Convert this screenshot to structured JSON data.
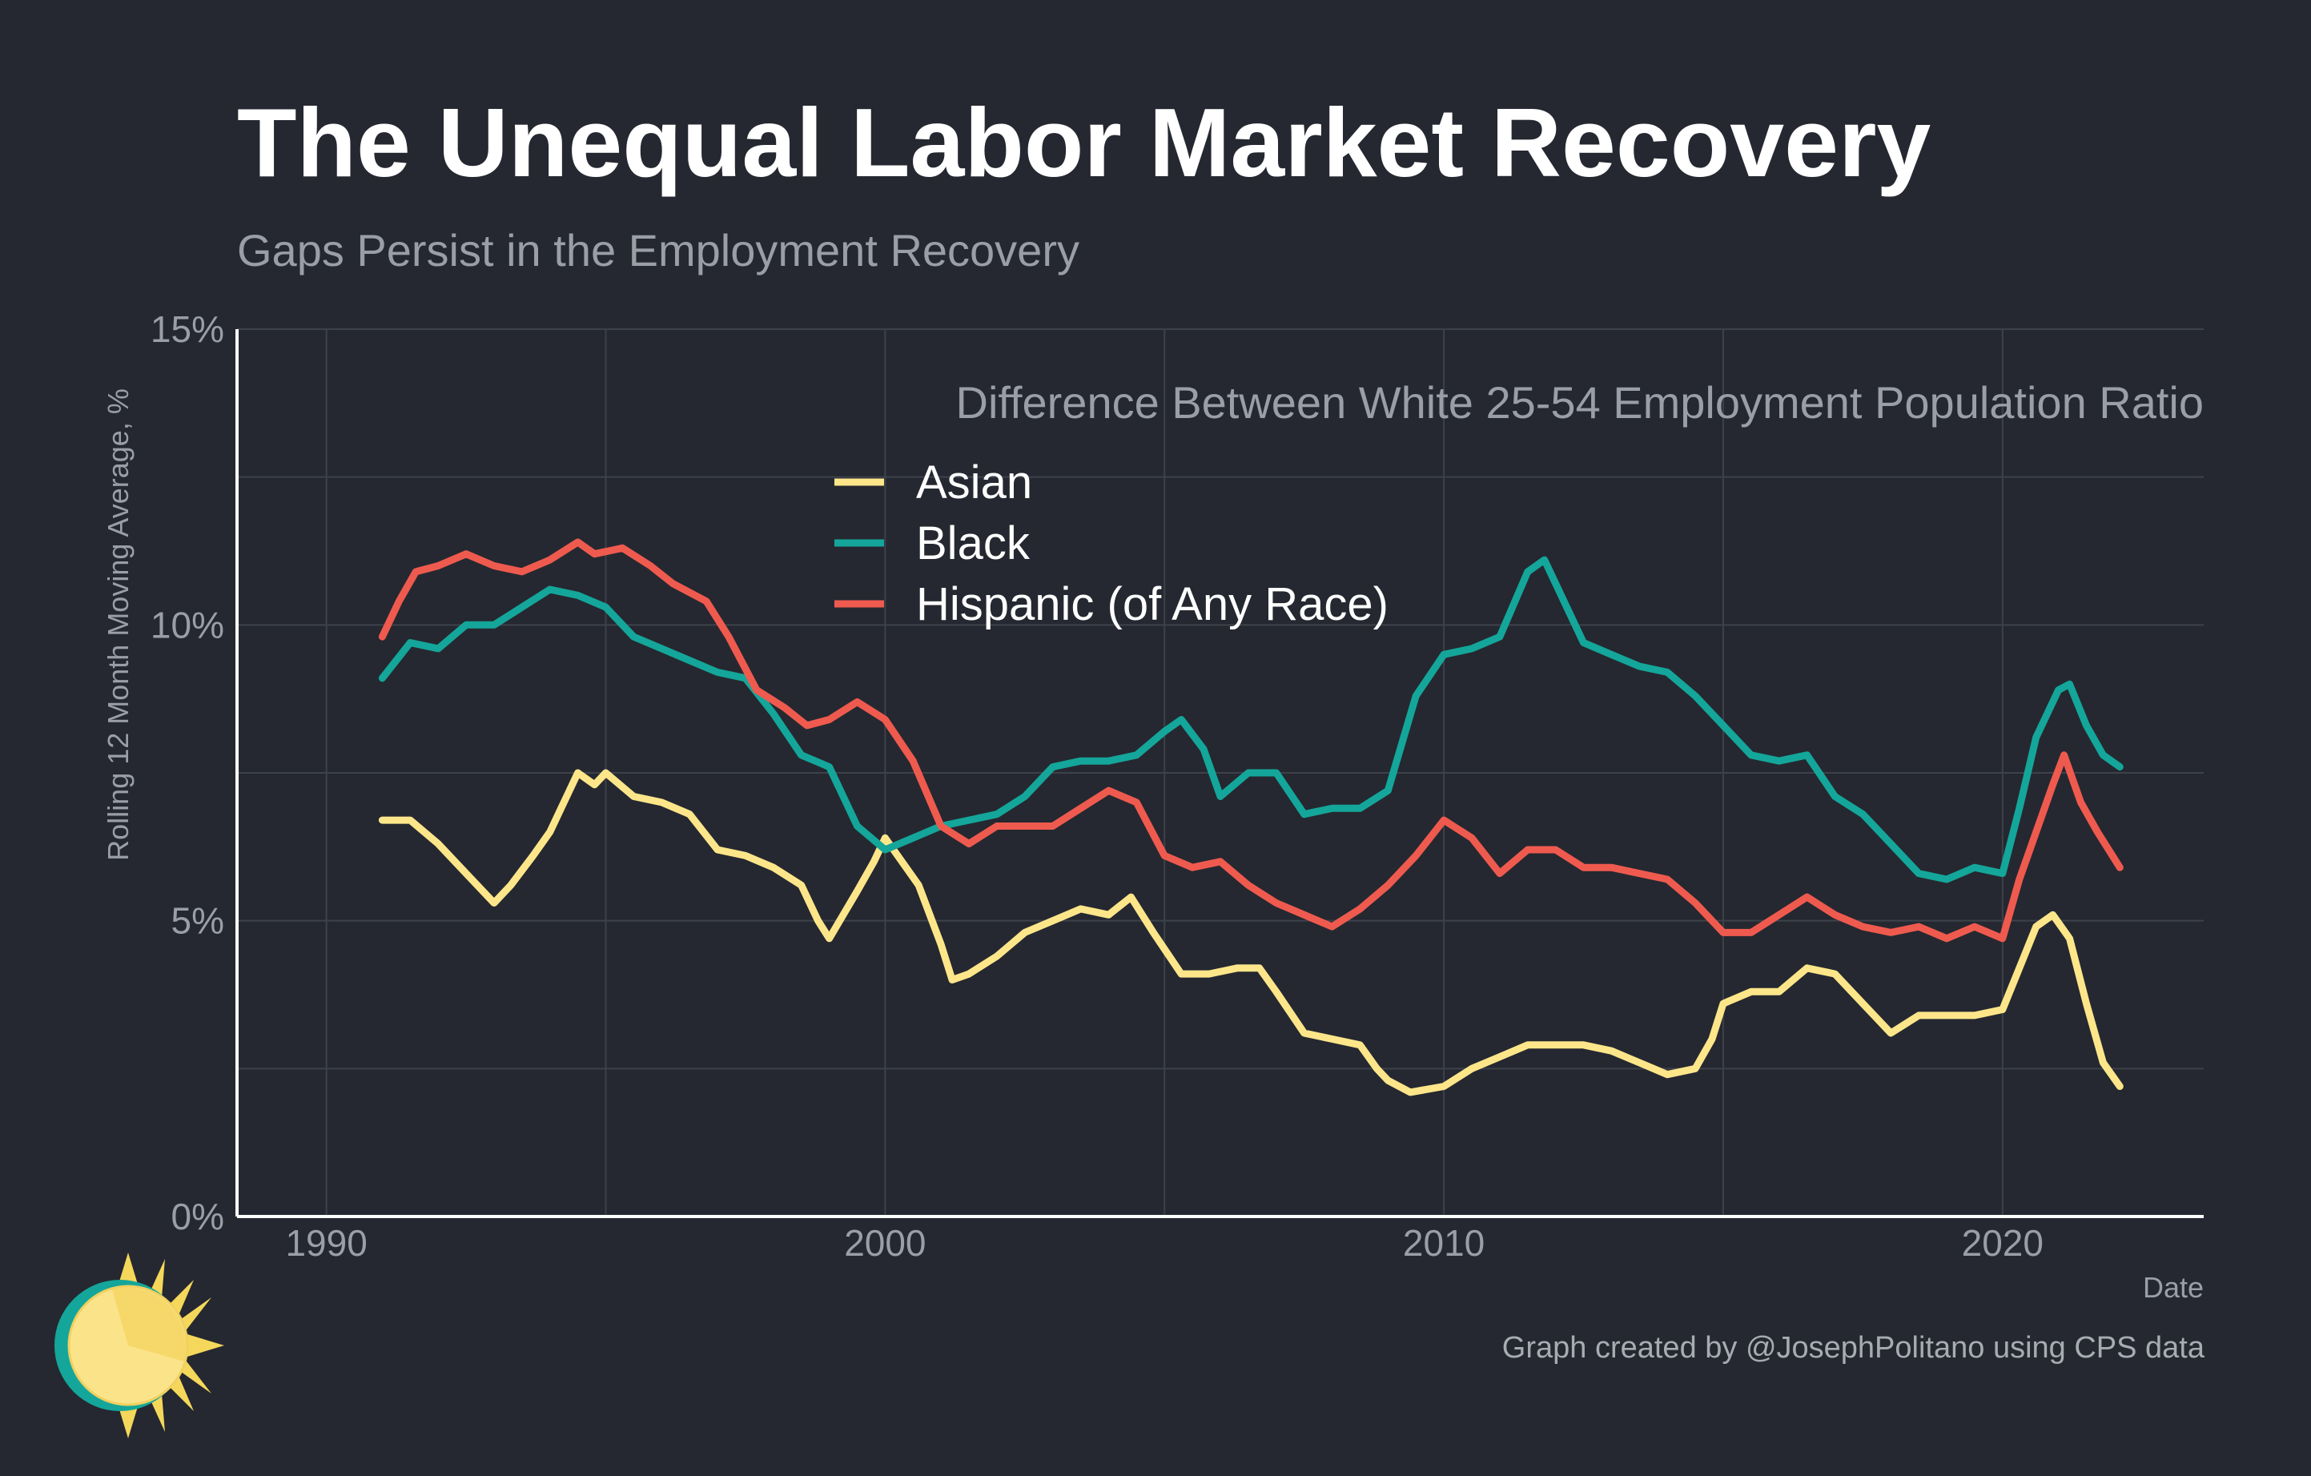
{
  "title": "The Unequal Labor Market Recovery",
  "subtitle": "Gaps Persist in the Employment Recovery",
  "caption": "Graph created by @JosephPolitano using CPS data",
  "colors": {
    "background": "#252830",
    "grid": "#3d414a",
    "axis": "#ffffff",
    "Asian": "#fde68a",
    "Black": "#14a69a",
    "Hispanic": "#ef5a4f"
  },
  "chart_data": {
    "type": "line",
    "title": "The Unequal Labor Market Recovery",
    "subtitle": "Gaps Persist in the Employment Recovery",
    "xlabel": "Date",
    "ylabel": "Rolling 12 Month Moving Average, %",
    "legend_title": "Difference Between White 25-54 Employment Population Ratio",
    "legend_position": "top-right",
    "grid": true,
    "xlim": [
      1988.4,
      2023.6
    ],
    "ylim": [
      0,
      15
    ],
    "x_ticks": [
      1990,
      2000,
      2010,
      2020
    ],
    "x_tick_labels": [
      "1990",
      "2000",
      "2010",
      "2020"
    ],
    "y_ticks": [
      0,
      5,
      10,
      15
    ],
    "y_tick_labels": [
      "0%",
      "5%",
      "10%",
      "15%"
    ],
    "series": [
      {
        "name": "Asian",
        "color": "#fde68a",
        "points": [
          [
            1991.0,
            6.7
          ],
          [
            1991.5,
            6.7
          ],
          [
            1992.0,
            6.3
          ],
          [
            1992.5,
            5.8
          ],
          [
            1993.0,
            5.3
          ],
          [
            1993.3,
            5.6
          ],
          [
            1993.7,
            6.1
          ],
          [
            1994.0,
            6.5
          ],
          [
            1994.5,
            7.5
          ],
          [
            1994.8,
            7.3
          ],
          [
            1995.0,
            7.5
          ],
          [
            1995.5,
            7.1
          ],
          [
            1996.0,
            7.0
          ],
          [
            1996.5,
            6.8
          ],
          [
            1997.0,
            6.2
          ],
          [
            1997.5,
            6.1
          ],
          [
            1998.0,
            5.9
          ],
          [
            1998.5,
            5.6
          ],
          [
            1998.8,
            5.0
          ],
          [
            1999.0,
            4.7
          ],
          [
            1999.5,
            5.5
          ],
          [
            1999.8,
            6.0
          ],
          [
            2000.0,
            6.4
          ],
          [
            2000.3,
            6.0
          ],
          [
            2000.6,
            5.6
          ],
          [
            2001.0,
            4.6
          ],
          [
            2001.2,
            4.0
          ],
          [
            2001.5,
            4.1
          ],
          [
            2002.0,
            4.4
          ],
          [
            2002.5,
            4.8
          ],
          [
            2003.0,
            5.0
          ],
          [
            2003.5,
            5.2
          ],
          [
            2004.0,
            5.1
          ],
          [
            2004.4,
            5.4
          ],
          [
            2004.8,
            4.8
          ],
          [
            2005.3,
            4.1
          ],
          [
            2005.8,
            4.1
          ],
          [
            2006.3,
            4.2
          ],
          [
            2006.7,
            4.2
          ],
          [
            2007.0,
            3.8
          ],
          [
            2007.5,
            3.1
          ],
          [
            2008.0,
            3.0
          ],
          [
            2008.5,
            2.9
          ],
          [
            2008.8,
            2.5
          ],
          [
            2009.0,
            2.3
          ],
          [
            2009.4,
            2.1
          ],
          [
            2010.0,
            2.2
          ],
          [
            2010.5,
            2.5
          ],
          [
            2011.0,
            2.7
          ],
          [
            2011.5,
            2.9
          ],
          [
            2012.0,
            2.9
          ],
          [
            2012.5,
            2.9
          ],
          [
            2013.0,
            2.8
          ],
          [
            2013.5,
            2.6
          ],
          [
            2014.0,
            2.4
          ],
          [
            2014.5,
            2.5
          ],
          [
            2014.8,
            3.0
          ],
          [
            2015.0,
            3.6
          ],
          [
            2015.5,
            3.8
          ],
          [
            2016.0,
            3.8
          ],
          [
            2016.5,
            4.2
          ],
          [
            2017.0,
            4.1
          ],
          [
            2017.5,
            3.6
          ],
          [
            2018.0,
            3.1
          ],
          [
            2018.5,
            3.4
          ],
          [
            2019.0,
            3.4
          ],
          [
            2019.5,
            3.4
          ],
          [
            2020.0,
            3.5
          ],
          [
            2020.3,
            4.2
          ],
          [
            2020.6,
            4.9
          ],
          [
            2020.9,
            5.1
          ],
          [
            2021.2,
            4.7
          ],
          [
            2021.5,
            3.6
          ],
          [
            2021.8,
            2.6
          ],
          [
            2022.1,
            2.2
          ]
        ]
      },
      {
        "name": "Black",
        "color": "#14a69a",
        "points": [
          [
            1991.0,
            9.1
          ],
          [
            1991.5,
            9.7
          ],
          [
            1992.0,
            9.6
          ],
          [
            1992.5,
            10.0
          ],
          [
            1993.0,
            10.0
          ],
          [
            1993.5,
            10.3
          ],
          [
            1994.0,
            10.6
          ],
          [
            1994.5,
            10.5
          ],
          [
            1995.0,
            10.3
          ],
          [
            1995.5,
            9.8
          ],
          [
            1996.0,
            9.6
          ],
          [
            1996.5,
            9.4
          ],
          [
            1997.0,
            9.2
          ],
          [
            1997.5,
            9.1
          ],
          [
            1998.0,
            8.5
          ],
          [
            1998.5,
            7.8
          ],
          [
            1999.0,
            7.6
          ],
          [
            1999.5,
            6.6
          ],
          [
            2000.0,
            6.2
          ],
          [
            2000.5,
            6.4
          ],
          [
            2001.0,
            6.6
          ],
          [
            2001.5,
            6.7
          ],
          [
            2002.0,
            6.8
          ],
          [
            2002.5,
            7.1
          ],
          [
            2003.0,
            7.6
          ],
          [
            2003.5,
            7.7
          ],
          [
            2004.0,
            7.7
          ],
          [
            2004.5,
            7.8
          ],
          [
            2005.0,
            8.2
          ],
          [
            2005.3,
            8.4
          ],
          [
            2005.7,
            7.9
          ],
          [
            2006.0,
            7.1
          ],
          [
            2006.5,
            7.5
          ],
          [
            2007.0,
            7.5
          ],
          [
            2007.5,
            6.8
          ],
          [
            2008.0,
            6.9
          ],
          [
            2008.5,
            6.9
          ],
          [
            2009.0,
            7.2
          ],
          [
            2009.5,
            8.8
          ],
          [
            2010.0,
            9.5
          ],
          [
            2010.5,
            9.6
          ],
          [
            2011.0,
            9.8
          ],
          [
            2011.5,
            10.9
          ],
          [
            2011.8,
            11.1
          ],
          [
            2012.2,
            10.3
          ],
          [
            2012.5,
            9.7
          ],
          [
            2013.0,
            9.5
          ],
          [
            2013.5,
            9.3
          ],
          [
            2014.0,
            9.2
          ],
          [
            2014.5,
            8.8
          ],
          [
            2015.0,
            8.3
          ],
          [
            2015.5,
            7.8
          ],
          [
            2016.0,
            7.7
          ],
          [
            2016.5,
            7.8
          ],
          [
            2017.0,
            7.1
          ],
          [
            2017.5,
            6.8
          ],
          [
            2018.0,
            6.3
          ],
          [
            2018.5,
            5.8
          ],
          [
            2019.0,
            5.7
          ],
          [
            2019.5,
            5.9
          ],
          [
            2020.0,
            5.8
          ],
          [
            2020.3,
            6.9
          ],
          [
            2020.6,
            8.1
          ],
          [
            2021.0,
            8.9
          ],
          [
            2021.2,
            9.0
          ],
          [
            2021.5,
            8.3
          ],
          [
            2021.8,
            7.8
          ],
          [
            2022.1,
            7.6
          ]
        ]
      },
      {
        "name": "Hispanic (of Any Race)",
        "color": "#ef5a4f",
        "points": [
          [
            1991.0,
            9.8
          ],
          [
            1991.3,
            10.4
          ],
          [
            1991.6,
            10.9
          ],
          [
            1992.0,
            11.0
          ],
          [
            1992.5,
            11.2
          ],
          [
            1993.0,
            11.0
          ],
          [
            1993.5,
            10.9
          ],
          [
            1994.0,
            11.1
          ],
          [
            1994.5,
            11.4
          ],
          [
            1994.8,
            11.2
          ],
          [
            1995.3,
            11.3
          ],
          [
            1995.8,
            11.0
          ],
          [
            1996.2,
            10.7
          ],
          [
            1996.8,
            10.4
          ],
          [
            1997.2,
            9.8
          ],
          [
            1997.7,
            8.9
          ],
          [
            1998.2,
            8.6
          ],
          [
            1998.6,
            8.3
          ],
          [
            1999.0,
            8.4
          ],
          [
            1999.5,
            8.7
          ],
          [
            2000.0,
            8.4
          ],
          [
            2000.5,
            7.7
          ],
          [
            2001.0,
            6.6
          ],
          [
            2001.5,
            6.3
          ],
          [
            2002.0,
            6.6
          ],
          [
            2002.5,
            6.6
          ],
          [
            2003.0,
            6.6
          ],
          [
            2003.5,
            6.9
          ],
          [
            2004.0,
            7.2
          ],
          [
            2004.5,
            7.0
          ],
          [
            2005.0,
            6.1
          ],
          [
            2005.5,
            5.9
          ],
          [
            2006.0,
            6.0
          ],
          [
            2006.5,
            5.6
          ],
          [
            2007.0,
            5.3
          ],
          [
            2007.5,
            5.1
          ],
          [
            2008.0,
            4.9
          ],
          [
            2008.5,
            5.2
          ],
          [
            2009.0,
            5.6
          ],
          [
            2009.5,
            6.1
          ],
          [
            2010.0,
            6.7
          ],
          [
            2010.5,
            6.4
          ],
          [
            2011.0,
            5.8
          ],
          [
            2011.5,
            6.2
          ],
          [
            2012.0,
            6.2
          ],
          [
            2012.5,
            5.9
          ],
          [
            2013.0,
            5.9
          ],
          [
            2013.5,
            5.8
          ],
          [
            2014.0,
            5.7
          ],
          [
            2014.5,
            5.3
          ],
          [
            2015.0,
            4.8
          ],
          [
            2015.5,
            4.8
          ],
          [
            2016.0,
            5.1
          ],
          [
            2016.5,
            5.4
          ],
          [
            2017.0,
            5.1
          ],
          [
            2017.5,
            4.9
          ],
          [
            2018.0,
            4.8
          ],
          [
            2018.5,
            4.9
          ],
          [
            2019.0,
            4.7
          ],
          [
            2019.5,
            4.9
          ],
          [
            2020.0,
            4.7
          ],
          [
            2020.3,
            5.7
          ],
          [
            2020.6,
            6.5
          ],
          [
            2020.9,
            7.3
          ],
          [
            2021.1,
            7.8
          ],
          [
            2021.4,
            7.0
          ],
          [
            2021.7,
            6.5
          ],
          [
            2022.1,
            5.9
          ]
        ]
      }
    ]
  }
}
